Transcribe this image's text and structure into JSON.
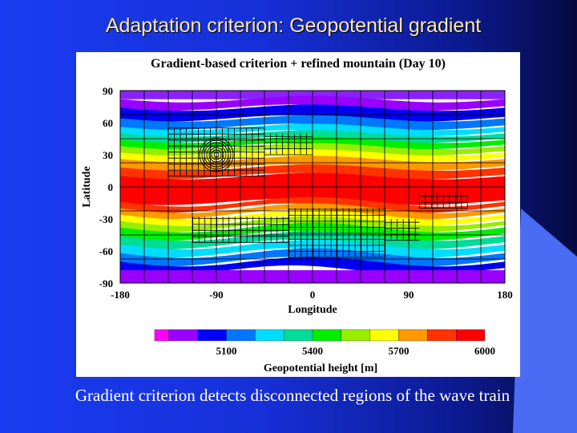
{
  "slide": {
    "title": "Adaptation criterion: Geopotential gradient",
    "caption": "Gradient criterion detects disconnected regions of the wave train"
  },
  "figure": {
    "title": "Gradient-based criterion + refined mountain (Day 10)",
    "colorbar_label": "Geopotential height [m]",
    "colorbar_colors": [
      "#ff00ff",
      "#9900ff",
      "#0000ff",
      "#0077ff",
      "#00ddff",
      "#00dd99",
      "#00ee00",
      "#99ee00",
      "#ffff00",
      "#ff9900",
      "#ff3300",
      "#ff0000"
    ],
    "colorbar_ticks": [
      {
        "value": 5100,
        "label": "5100"
      },
      {
        "value": 5400,
        "label": "5400"
      },
      {
        "value": 5700,
        "label": "5700"
      },
      {
        "value": 6000,
        "label": "6000"
      }
    ],
    "colorbar_range": [
      4800,
      6000
    ]
  },
  "chart_data": {
    "type": "heatmap",
    "title": "Gradient-based criterion + refined mountain (Day 10)",
    "xlabel": "Longitude",
    "ylabel": "Latitude",
    "xlim": [
      -180,
      180
    ],
    "ylim": [
      -90,
      90
    ],
    "x_ticks": [
      -180,
      -90,
      0,
      90,
      180
    ],
    "y_ticks": [
      90,
      60,
      30,
      0,
      -30,
      -60,
      -90
    ],
    "x_tick_labels": [
      "-180",
      "-90",
      "0",
      "90",
      "180"
    ],
    "y_tick_labels": [
      "90",
      "60",
      "30",
      "0",
      "-30",
      "-60",
      "-90"
    ],
    "bands": [
      {
        "lat_top": 90,
        "lat_bottom": 82,
        "color": "#8a22ff"
      },
      {
        "lat_top": 82,
        "lat_bottom": 74,
        "color": "#9900ff"
      },
      {
        "lat_top": 74,
        "lat_bottom": 64,
        "color": "#0000ee"
      },
      {
        "lat_top": 64,
        "lat_bottom": 56,
        "color": "#0077ff"
      },
      {
        "lat_top": 56,
        "lat_bottom": 50,
        "color": "#00ddff"
      },
      {
        "lat_top": 50,
        "lat_bottom": 44,
        "color": "#00dd99"
      },
      {
        "lat_top": 44,
        "lat_bottom": 38,
        "color": "#00ee00"
      },
      {
        "lat_top": 38,
        "lat_bottom": 32,
        "color": "#99ee00"
      },
      {
        "lat_top": 32,
        "lat_bottom": 26,
        "color": "#ffff00"
      },
      {
        "lat_top": 26,
        "lat_bottom": 18,
        "color": "#ff9900"
      },
      {
        "lat_top": 18,
        "lat_bottom": 10,
        "color": "#ff3300"
      },
      {
        "lat_top": 10,
        "lat_bottom": -14,
        "color": "#ff0000"
      },
      {
        "lat_top": -14,
        "lat_bottom": -20,
        "color": "#ff3300"
      },
      {
        "lat_top": -20,
        "lat_bottom": -26,
        "color": "#ff9900"
      },
      {
        "lat_top": -26,
        "lat_bottom": -32,
        "color": "#ffff00"
      },
      {
        "lat_top": -32,
        "lat_bottom": -38,
        "color": "#99ee00"
      },
      {
        "lat_top": -38,
        "lat_bottom": -46,
        "color": "#00ee00"
      },
      {
        "lat_top": -46,
        "lat_bottom": -54,
        "color": "#00dd99"
      },
      {
        "lat_top": -54,
        "lat_bottom": -62,
        "color": "#00ddff"
      },
      {
        "lat_top": -62,
        "lat_bottom": -70,
        "color": "#0077ff"
      },
      {
        "lat_top": -70,
        "lat_bottom": -78,
        "color": "#0000ee"
      },
      {
        "lat_top": -78,
        "lat_bottom": -90,
        "color": "#9900ff"
      }
    ],
    "mountain_center": {
      "lon": -90,
      "lat": 30
    },
    "refined_regions": [
      {
        "lon0": -135,
        "lon1": -45,
        "lat0": 10,
        "lat1": 55
      },
      {
        "lon0": -45,
        "lon1": 0,
        "lat0": 30,
        "lat1": 50
      },
      {
        "lon0": -112,
        "lon1": -22,
        "lat0": -52,
        "lat1": -28
      },
      {
        "lon0": -22,
        "lon1": 68,
        "lat0": -66,
        "lat1": -20
      },
      {
        "lon0": 68,
        "lon1": 100,
        "lat0": -50,
        "lat1": -30
      },
      {
        "lon0": 100,
        "lon1": 145,
        "lat0": -20,
        "lat1": -5
      }
    ]
  }
}
